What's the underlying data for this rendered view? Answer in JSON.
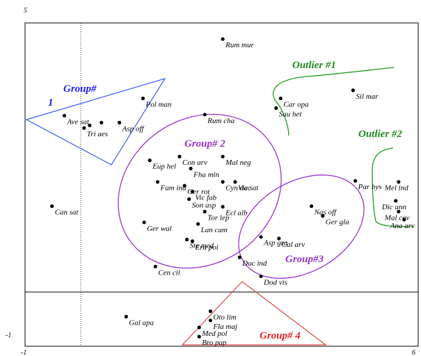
{
  "chart_data": {
    "type": "scatter",
    "xlim": [
      -1,
      6
    ],
    "ylim": [
      -1,
      5
    ],
    "tick_labels": {
      "x_min": "-1",
      "x_max": "6",
      "y_min": "-1",
      "y_max": "5"
    },
    "grid": false,
    "points": [
      {
        "label": "Rum mur",
        "x": 2.52,
        "y": 4.7
      },
      {
        "label": "Sil mar",
        "x": 4.84,
        "y": 3.75
      },
      {
        "label": "Car opa",
        "x": 3.55,
        "y": 3.6
      },
      {
        "label": "Sau het",
        "x": 3.47,
        "y": 3.42
      },
      {
        "label": "Pol man",
        "x": 1.1,
        "y": 3.6
      },
      {
        "label": "Ave sat",
        "x": -0.3,
        "y": 3.28
      },
      {
        "label": "",
        "x": 0.15,
        "y": 3.1
      },
      {
        "label": "",
        "x": 0.36,
        "y": 3.15
      },
      {
        "label": "Asp off",
        "x": 0.68,
        "y": 3.15
      },
      {
        "label": "Tri aes",
        "x": 0.05,
        "y": 3.05
      },
      {
        "label": "Rum cha",
        "x": 2.2,
        "y": 3.3
      },
      {
        "label": "Mal neg",
        "x": 2.52,
        "y": 2.52
      },
      {
        "label": "Con arv",
        "x": 1.75,
        "y": 2.52
      },
      {
        "label": "Eup hel",
        "x": 1.22,
        "y": 2.45
      },
      {
        "label": "Fha min",
        "x": 1.95,
        "y": 2.3
      },
      {
        "label": "Cyn dac",
        "x": 2.52,
        "y": 2.05
      },
      {
        "label": "Fum ind",
        "x": 1.36,
        "y": 2.05
      },
      {
        "label": "Ger rot",
        "x": 1.84,
        "y": 1.98
      },
      {
        "label": "Vic fab",
        "x": 1.98,
        "y": 1.87
      },
      {
        "label": "Vic sat",
        "x": 2.74,
        "y": 2.05
      },
      {
        "label": "Mel ind",
        "x": 5.65,
        "y": 2.05
      },
      {
        "label": "Par hys",
        "x": 4.88,
        "y": 2.07
      },
      {
        "label": "Dic ann",
        "x": 5.6,
        "y": 1.7
      },
      {
        "label": "Nas off",
        "x": 4.1,
        "y": 1.6
      },
      {
        "label": "Mal cov",
        "x": 5.65,
        "y": 1.5
      },
      {
        "label": "Ana arv",
        "x": 5.75,
        "y": 1.35
      },
      {
        "label": "Son asp",
        "x": 1.92,
        "y": 1.73
      },
      {
        "label": "Ecl alb",
        "x": 2.52,
        "y": 1.59
      },
      {
        "label": "Tor lep",
        "x": 2.2,
        "y": 1.5
      },
      {
        "label": "Ger wal",
        "x": 1.12,
        "y": 1.3
      },
      {
        "label": "Ger gla",
        "x": 4.3,
        "y": 1.42
      },
      {
        "label": "Lan cam",
        "x": 2.08,
        "y": 1.27
      },
      {
        "label": "Asp gra",
        "x": 3.2,
        "y": 1.03
      },
      {
        "label": "Ste med",
        "x": 1.88,
        "y": 0.98
      },
      {
        "label": "Era poi",
        "x": 1.98,
        "y": 0.95
      },
      {
        "label": "Cal arv",
        "x": 3.52,
        "y": 1.0
      },
      {
        "label": "Can sat",
        "x": -0.52,
        "y": 1.6
      },
      {
        "label": "Duc ind",
        "x": 2.82,
        "y": 0.65
      },
      {
        "label": "Cen cil",
        "x": 1.32,
        "y": 0.48
      },
      {
        "label": "Dod vis",
        "x": 3.2,
        "y": 0.3
      },
      {
        "label": "Oto lim",
        "x": 2.3,
        "y": -0.35
      },
      {
        "label": "Fla maj",
        "x": 2.3,
        "y": -0.52
      },
      {
        "label": "Gal apa",
        "x": 0.8,
        "y": -0.45
      },
      {
        "label": "Med pol",
        "x": 2.1,
        "y": -0.65
      },
      {
        "label": "Bro pap",
        "x": 2.1,
        "y": -0.82
      }
    ],
    "annotations": [
      {
        "text": "Group#",
        "color": "#1a1aff"
      },
      {
        "text": "1",
        "color": "#1a1aff"
      },
      {
        "text": "Group# 2",
        "color": "#9932cc"
      },
      {
        "text": "Group#3",
        "color": "#9932cc"
      },
      {
        "text": "Group# 4",
        "color": "#dd2222"
      },
      {
        "text": "Outlier #1",
        "color": "#1e8c1e"
      },
      {
        "text": "Outlier #2",
        "color": "#1e8c1e"
      }
    ]
  }
}
